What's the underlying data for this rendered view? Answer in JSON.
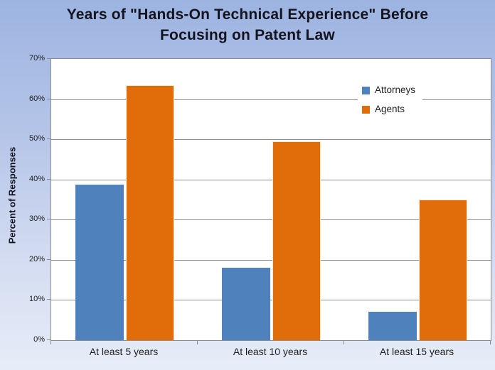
{
  "title": {
    "line1": "Years of \"Hands-On Technical Experience\" Before",
    "line2": "Focusing on Patent Law"
  },
  "chart_data": {
    "type": "bar",
    "title": "Years of \"Hands-On Technical Experience\" Before Focusing on Patent Law",
    "categories": [
      "At least 5 years",
      "At least 10 years",
      "At least 15 years"
    ],
    "series": [
      {
        "name": "Attorneys",
        "color": "#4F81BD",
        "values": [
          38.7,
          18,
          7
        ]
      },
      {
        "name": "Agents",
        "color": "#E06C0A",
        "values": [
          63.5,
          49.5,
          35
        ]
      }
    ],
    "xlabel": "",
    "ylabel": "Percent of Responses",
    "ylim": [
      0,
      70
    ],
    "ytick_step": 10,
    "ytick_labels": [
      "0%",
      "10%",
      "20%",
      "30%",
      "40%",
      "50%",
      "60%",
      "70%"
    ],
    "grid": true,
    "legend_position": "inside-upper-right"
  },
  "colors": {
    "attorneys": "#4F81BD",
    "agents": "#E06C0A",
    "gridline": "#8C8C8C",
    "plot_background": "#FFFFFF",
    "background_top": "#9DB4E1",
    "background_bottom": "#E7EDF8",
    "text": "#14141E"
  }
}
